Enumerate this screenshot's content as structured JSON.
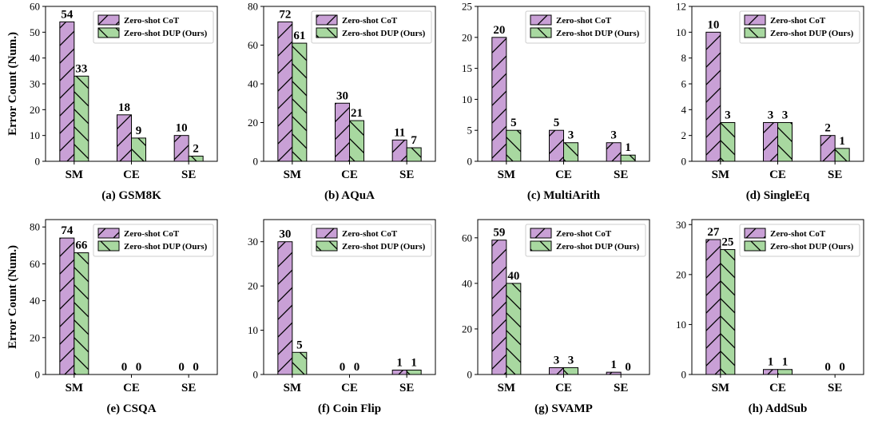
{
  "legend": {
    "series": [
      "Zero-shot CoT",
      "Zero-shot DUP (Ours)"
    ],
    "placement": "top-right"
  },
  "colors": {
    "cot": "#c9a0d6",
    "dup": "#a8d8a0"
  },
  "ylabel": "Error Count (Num.)",
  "chart_data": [
    {
      "type": "bar",
      "caption": "(a) GSM8K",
      "categories": [
        "SM",
        "CE",
        "SE"
      ],
      "series": [
        {
          "name": "Zero-shot CoT",
          "values": [
            54,
            18,
            10
          ]
        },
        {
          "name": "Zero-shot DUP (Ours)",
          "values": [
            33,
            9,
            2
          ]
        }
      ],
      "ylim": [
        0,
        60
      ],
      "yticks": [
        0,
        10,
        20,
        30,
        40,
        50,
        60
      ],
      "ylabel": "Error Count (Num.)"
    },
    {
      "type": "bar",
      "caption": "(b) AQuA",
      "categories": [
        "SM",
        "CE",
        "SE"
      ],
      "series": [
        {
          "name": "Zero-shot CoT",
          "values": [
            72,
            30,
            11
          ]
        },
        {
          "name": "Zero-shot DUP (Ours)",
          "values": [
            61,
            21,
            7
          ]
        }
      ],
      "ylim": [
        0,
        80
      ],
      "yticks": [
        0,
        20,
        40,
        60,
        80
      ],
      "ylabel": ""
    },
    {
      "type": "bar",
      "caption": "(c) MultiArith",
      "categories": [
        "SM",
        "CE",
        "SE"
      ],
      "series": [
        {
          "name": "Zero-shot CoT",
          "values": [
            20,
            5,
            3
          ]
        },
        {
          "name": "Zero-shot DUP (Ours)",
          "values": [
            5,
            3,
            1
          ]
        }
      ],
      "ylim": [
        0,
        25
      ],
      "yticks": [
        0,
        5,
        10,
        15,
        20,
        25
      ],
      "ylabel": ""
    },
    {
      "type": "bar",
      "caption": "(d) SingleEq",
      "categories": [
        "SM",
        "CE",
        "SE"
      ],
      "series": [
        {
          "name": "Zero-shot CoT",
          "values": [
            10,
            3,
            2
          ]
        },
        {
          "name": "Zero-shot DUP (Ours)",
          "values": [
            3,
            3,
            1
          ]
        }
      ],
      "ylim": [
        0,
        12
      ],
      "yticks": [
        0,
        2,
        4,
        6,
        8,
        10,
        12
      ],
      "ylabel": ""
    },
    {
      "type": "bar",
      "caption": "(e) CSQA",
      "categories": [
        "SM",
        "CE",
        "SE"
      ],
      "series": [
        {
          "name": "Zero-shot CoT",
          "values": [
            74,
            0,
            0
          ]
        },
        {
          "name": "Zero-shot DUP (Ours)",
          "values": [
            66,
            0,
            0
          ]
        }
      ],
      "ylim": [
        0,
        84
      ],
      "yticks": [
        0,
        20,
        40,
        60,
        80
      ],
      "ylabel": "Error Count (Num.)"
    },
    {
      "type": "bar",
      "caption": "(f) Coin Flip",
      "categories": [
        "SM",
        "CE",
        "SE"
      ],
      "series": [
        {
          "name": "Zero-shot CoT",
          "values": [
            30,
            0,
            1
          ]
        },
        {
          "name": "Zero-shot DUP (Ours)",
          "values": [
            5,
            0,
            1
          ]
        }
      ],
      "ylim": [
        0,
        35
      ],
      "yticks": [
        0,
        10,
        20,
        30
      ],
      "ylabel": ""
    },
    {
      "type": "bar",
      "caption": "(g) SVAMP",
      "categories": [
        "SM",
        "CE",
        "SE"
      ],
      "series": [
        {
          "name": "Zero-shot CoT",
          "values": [
            59,
            3,
            1
          ]
        },
        {
          "name": "Zero-shot DUP (Ours)",
          "values": [
            40,
            3,
            0
          ]
        }
      ],
      "ylim": [
        0,
        68
      ],
      "yticks": [
        0,
        20,
        40,
        60
      ],
      "ylabel": ""
    },
    {
      "type": "bar",
      "caption": "(h) AddSub",
      "categories": [
        "SM",
        "CE",
        "SE"
      ],
      "series": [
        {
          "name": "Zero-shot CoT",
          "values": [
            27,
            1,
            0
          ]
        },
        {
          "name": "Zero-shot DUP (Ours)",
          "values": [
            25,
            1,
            0
          ]
        }
      ],
      "ylim": [
        0,
        31
      ],
      "yticks": [
        0,
        10,
        20,
        30
      ],
      "ylabel": ""
    }
  ]
}
